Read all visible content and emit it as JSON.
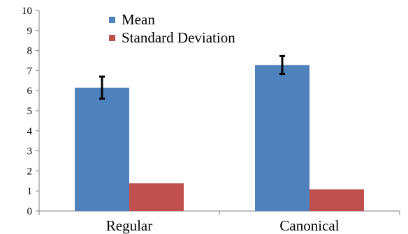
{
  "chart_data": {
    "type": "bar",
    "title": "",
    "xlabel": "",
    "ylabel": "",
    "categories": [
      "Regular",
      "Canonical"
    ],
    "series": [
      {
        "name": "Mean",
        "values": [
          6.15,
          7.28
        ],
        "error": [
          0.55,
          0.45
        ],
        "color": "#4f81bd"
      },
      {
        "name": "Standard Deviation",
        "values": [
          1.38,
          1.08
        ],
        "color": "#c0504d"
      }
    ],
    "ylim": [
      0,
      10
    ],
    "yticks": [
      0,
      1,
      2,
      3,
      4,
      5,
      6,
      7,
      8,
      9,
      10
    ],
    "grid": false,
    "legend_position": "top-center"
  }
}
